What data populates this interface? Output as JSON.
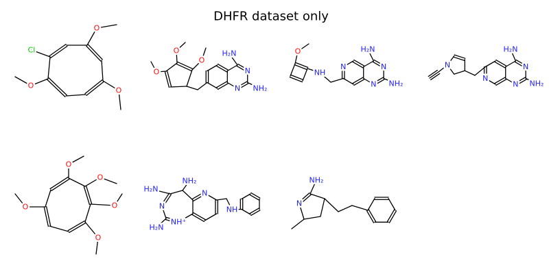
{
  "title": "DHFR dataset only",
  "molecules": [
    {
      "atoms": [
        "Cl",
        "O",
        "O",
        "O"
      ]
    },
    {
      "atoms": [
        "O",
        "O",
        "O",
        "H₂N",
        "N",
        "NH₂",
        "N"
      ]
    },
    {
      "atoms": [
        "O",
        "NH",
        "N",
        "H₂N",
        "N",
        "NH₂",
        "N"
      ]
    },
    {
      "atoms": [
        "N",
        "H₂N",
        "N",
        "NH₂",
        "N",
        "N"
      ]
    },
    {
      "atoms": [
        "O",
        "O",
        "O",
        "O",
        "O"
      ]
    },
    {
      "atoms": [
        "H₂N",
        "N",
        "H₂N",
        "NH⁺",
        "NH₂",
        "N",
        "NH"
      ]
    },
    {
      "atoms": [
        "NH₂",
        "N"
      ]
    }
  ]
}
